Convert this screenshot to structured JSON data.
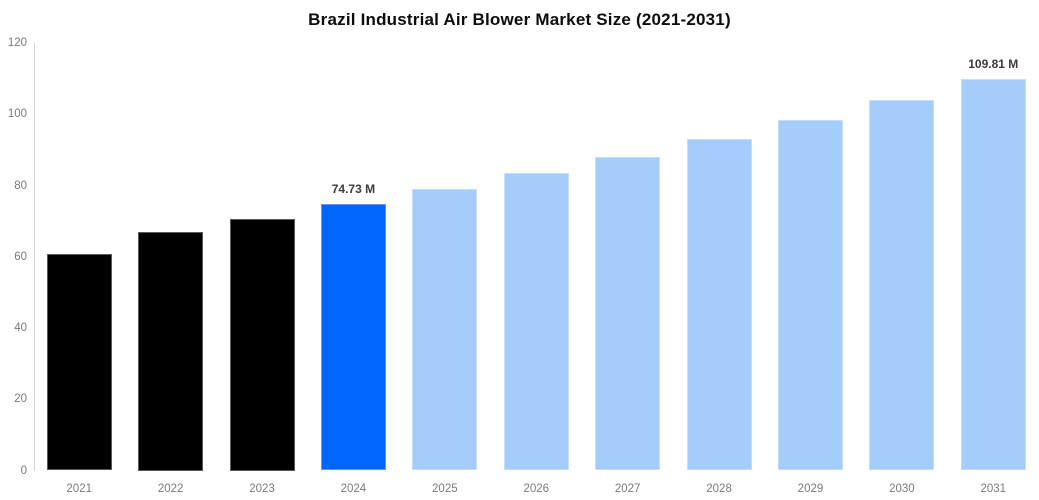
{
  "title": "Brazil Industrial Air Blower Market Size (2021-2031)",
  "chart_data": {
    "type": "bar",
    "title": "Brazil Industrial Air Blower Market Size (2021-2031)",
    "categories": [
      "2021",
      "2022",
      "2023",
      "2024",
      "2025",
      "2026",
      "2027",
      "2028",
      "2029",
      "2030",
      "2031"
    ],
    "values": [
      60.9,
      67.0,
      70.5,
      74.73,
      78.95,
      83.41,
      88.13,
      93.11,
      98.37,
      103.93,
      109.81
    ],
    "bar_roles": [
      "historical",
      "historical",
      "historical",
      "highlight",
      "forecast",
      "forecast",
      "forecast",
      "forecast",
      "forecast",
      "forecast",
      "forecast"
    ],
    "bar_labels": [
      "",
      "",
      "",
      "74.73 M",
      "",
      "",
      "",
      "",
      "",
      "",
      "109.81 M"
    ],
    "xlabel": "",
    "ylabel": "",
    "ylim": [
      0,
      120
    ],
    "yticks": [
      0,
      20,
      40,
      60,
      80,
      100,
      120
    ],
    "grid": false,
    "legend": null,
    "colors": {
      "historical": "#000000",
      "highlight": "#0066FF",
      "forecast": "#A5CDFB"
    },
    "axis_line_color": "#d6d6d6",
    "tick_label_color": "#7a7a7a",
    "bar_label_color": "#3b3b3b",
    "title_color": "#0d0d0d",
    "background_color": "#ffffff"
  }
}
